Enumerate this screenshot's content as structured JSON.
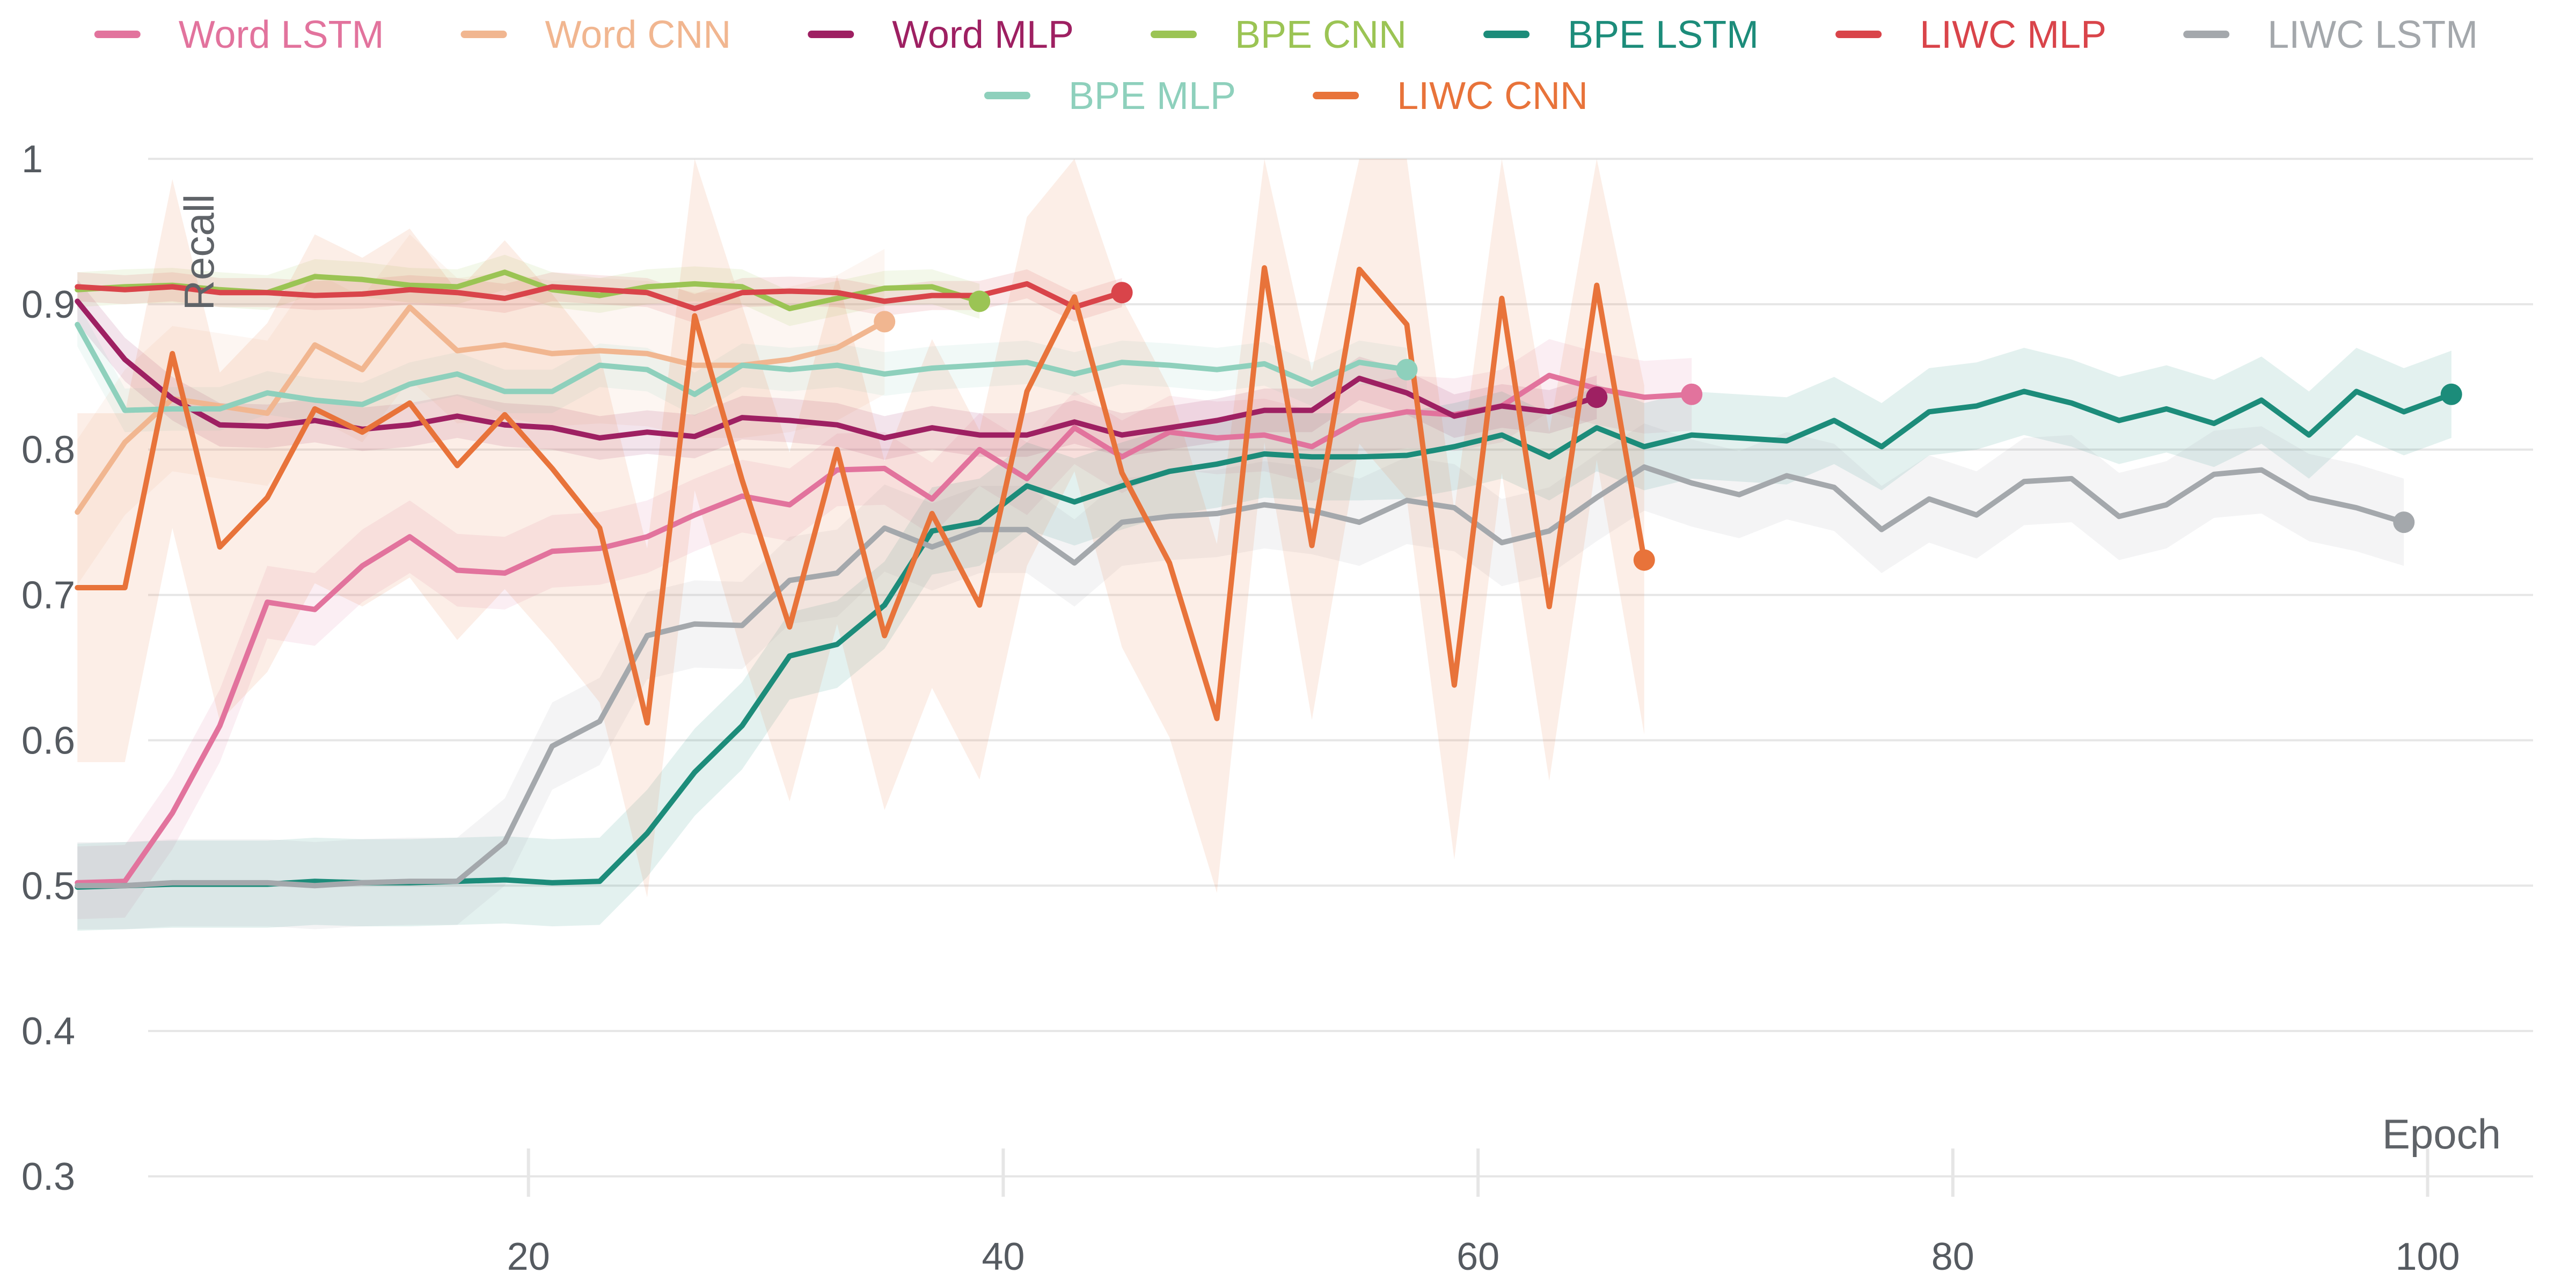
{
  "chart_data": {
    "type": "line",
    "xlabel": "Epoch",
    "ylabel": "Recall",
    "xlim": [
      0,
      102
    ],
    "ylim": [
      0.3,
      1.0
    ],
    "x_ticks": [
      20,
      40,
      60,
      80,
      100
    ],
    "y_ticks": [
      0.3,
      0.4,
      0.5,
      0.6,
      0.7,
      0.8,
      0.9,
      1.0
    ],
    "y_tick_labels": [
      "0.3",
      "0.4",
      "0.5",
      "0.6",
      "0.7",
      "0.8",
      "0.9",
      "1"
    ],
    "grid": "horizontal",
    "legend_position": "top",
    "series": [
      {
        "name": "Word LSTM",
        "color": "#e2739d",
        "band": 0.025,
        "x": [
          1,
          3,
          5,
          7,
          9,
          11,
          13,
          15,
          17,
          19,
          21,
          23,
          25,
          27,
          29,
          31,
          33,
          35,
          37,
          39,
          41,
          43,
          45,
          47,
          49,
          51,
          53,
          55,
          57,
          59,
          61,
          63,
          65,
          67,
          69
        ],
        "y": [
          0.502,
          0.503,
          0.55,
          0.61,
          0.695,
          0.69,
          0.72,
          0.74,
          0.717,
          0.715,
          0.73,
          0.732,
          0.74,
          0.755,
          0.768,
          0.762,
          0.786,
          0.787,
          0.766,
          0.8,
          0.78,
          0.815,
          0.795,
          0.812,
          0.808,
          0.81,
          0.802,
          0.82,
          0.826,
          0.824,
          0.83,
          0.851,
          0.842,
          0.836,
          0.838
        ]
      },
      {
        "name": "Word CNN",
        "color": "#f1b690",
        "band": 0.05,
        "x": [
          1,
          3,
          5,
          7,
          9,
          11,
          13,
          15,
          17,
          19,
          21,
          23,
          25,
          27,
          29,
          31,
          33,
          35
        ],
        "y": [
          0.757,
          0.805,
          0.835,
          0.83,
          0.825,
          0.872,
          0.855,
          0.898,
          0.868,
          0.872,
          0.866,
          0.868,
          0.866,
          0.858,
          0.858,
          0.862,
          0.87,
          0.888
        ]
      },
      {
        "name": "Word MLP",
        "color": "#9e2062",
        "band": 0.015,
        "x": [
          1,
          3,
          5,
          7,
          9,
          11,
          13,
          15,
          17,
          19,
          21,
          23,
          25,
          27,
          29,
          31,
          33,
          35,
          37,
          39,
          41,
          43,
          45,
          47,
          49,
          51,
          53,
          55,
          57,
          59,
          61,
          63,
          65
        ],
        "y": [
          0.902,
          0.862,
          0.835,
          0.817,
          0.816,
          0.82,
          0.814,
          0.817,
          0.823,
          0.817,
          0.815,
          0.808,
          0.812,
          0.809,
          0.822,
          0.82,
          0.817,
          0.808,
          0.815,
          0.81,
          0.81,
          0.819,
          0.81,
          0.815,
          0.82,
          0.827,
          0.827,
          0.849,
          0.839,
          0.823,
          0.83,
          0.826,
          0.836
        ]
      },
      {
        "name": "BPE CNN",
        "color": "#9bc454",
        "band": 0.012,
        "x": [
          1,
          3,
          5,
          7,
          9,
          11,
          13,
          15,
          17,
          19,
          21,
          23,
          25,
          27,
          29,
          31,
          33,
          35,
          37,
          39
        ],
        "y": [
          0.91,
          0.912,
          0.913,
          0.91,
          0.908,
          0.919,
          0.917,
          0.913,
          0.912,
          0.922,
          0.91,
          0.906,
          0.912,
          0.914,
          0.912,
          0.897,
          0.904,
          0.911,
          0.912,
          0.902
        ]
      },
      {
        "name": "BPE LSTM",
        "color": "#1c8c7a",
        "band": 0.03,
        "x": [
          1,
          3,
          5,
          7,
          9,
          11,
          13,
          15,
          17,
          19,
          21,
          23,
          25,
          27,
          29,
          31,
          33,
          35,
          37,
          39,
          41,
          43,
          45,
          47,
          49,
          51,
          53,
          55,
          57,
          59,
          61,
          63,
          65,
          67,
          69,
          71,
          73,
          75,
          77,
          79,
          81,
          83,
          85,
          87,
          89,
          91,
          93,
          95,
          97,
          99,
          101
        ],
        "y": [
          0.499,
          0.5,
          0.501,
          0.501,
          0.501,
          0.503,
          0.502,
          0.502,
          0.503,
          0.504,
          0.502,
          0.503,
          0.536,
          0.578,
          0.61,
          0.658,
          0.666,
          0.693,
          0.744,
          0.75,
          0.775,
          0.764,
          0.775,
          0.785,
          0.79,
          0.797,
          0.795,
          0.795,
          0.796,
          0.802,
          0.81,
          0.795,
          0.815,
          0.802,
          0.81,
          0.808,
          0.806,
          0.82,
          0.802,
          0.826,
          0.83,
          0.84,
          0.832,
          0.82,
          0.828,
          0.818,
          0.834,
          0.81,
          0.84,
          0.826,
          0.838
        ]
      },
      {
        "name": "LIWC MLP",
        "color": "#d9444a",
        "band": 0.01,
        "x": [
          1,
          3,
          5,
          7,
          9,
          11,
          13,
          15,
          17,
          19,
          21,
          23,
          25,
          27,
          29,
          31,
          33,
          35,
          37,
          39,
          41,
          43,
          45
        ],
        "y": [
          0.912,
          0.91,
          0.912,
          0.908,
          0.908,
          0.906,
          0.907,
          0.91,
          0.908,
          0.904,
          0.912,
          0.91,
          0.908,
          0.897,
          0.908,
          0.909,
          0.908,
          0.902,
          0.906,
          0.906,
          0.914,
          0.898,
          0.908
        ]
      },
      {
        "name": "LIWC LSTM",
        "color": "#a4a8ac",
        "band": 0.03,
        "x": [
          1,
          3,
          5,
          7,
          9,
          11,
          13,
          15,
          17,
          19,
          21,
          23,
          25,
          27,
          29,
          31,
          33,
          35,
          37,
          39,
          41,
          43,
          45,
          47,
          49,
          51,
          53,
          55,
          57,
          59,
          61,
          63,
          65,
          67,
          69,
          71,
          73,
          75,
          77,
          79,
          81,
          83,
          85,
          87,
          89,
          91,
          93,
          95,
          97,
          99
        ],
        "y": [
          0.5,
          0.5,
          0.502,
          0.502,
          0.502,
          0.5,
          0.502,
          0.503,
          0.503,
          0.53,
          0.596,
          0.613,
          0.672,
          0.68,
          0.679,
          0.71,
          0.715,
          0.746,
          0.733,
          0.745,
          0.745,
          0.722,
          0.75,
          0.754,
          0.756,
          0.762,
          0.758,
          0.75,
          0.765,
          0.76,
          0.736,
          0.744,
          0.767,
          0.788,
          0.777,
          0.769,
          0.782,
          0.774,
          0.745,
          0.766,
          0.755,
          0.778,
          0.78,
          0.754,
          0.762,
          0.783,
          0.786,
          0.767,
          0.76,
          0.75
        ]
      },
      {
        "name": "BPE MLP",
        "color": "#8ed0bc",
        "band": 0.015,
        "x": [
          1,
          3,
          5,
          7,
          9,
          11,
          13,
          15,
          17,
          19,
          21,
          23,
          25,
          27,
          29,
          31,
          33,
          35,
          37,
          39,
          41,
          43,
          45,
          47,
          49,
          51,
          53,
          55,
          57
        ],
        "y": [
          0.886,
          0.827,
          0.828,
          0.828,
          0.839,
          0.834,
          0.831,
          0.845,
          0.852,
          0.84,
          0.84,
          0.858,
          0.855,
          0.838,
          0.858,
          0.855,
          0.858,
          0.852,
          0.856,
          0.858,
          0.86,
          0.852,
          0.86,
          0.858,
          0.855,
          0.859,
          0.845,
          0.86,
          0.855
        ]
      },
      {
        "name": "LIWC CNN",
        "color": "#e8733a",
        "band": 0.12,
        "x": [
          1,
          3,
          5,
          7,
          9,
          11,
          13,
          15,
          17,
          19,
          21,
          23,
          25,
          27,
          29,
          31,
          33,
          35,
          37,
          39,
          41,
          43,
          45,
          47,
          49,
          51,
          53,
          55,
          57,
          59,
          61,
          63,
          65,
          67
        ],
        "y": [
          0.705,
          0.705,
          0.866,
          0.733,
          0.767,
          0.828,
          0.812,
          0.832,
          0.789,
          0.824,
          0.787,
          0.746,
          0.612,
          0.892,
          0.779,
          0.678,
          0.8,
          0.672,
          0.756,
          0.693,
          0.84,
          0.905,
          0.784,
          0.722,
          0.615,
          0.925,
          0.734,
          0.924,
          0.886,
          0.638,
          0.904,
          0.692,
          0.913,
          0.724
        ]
      }
    ]
  }
}
